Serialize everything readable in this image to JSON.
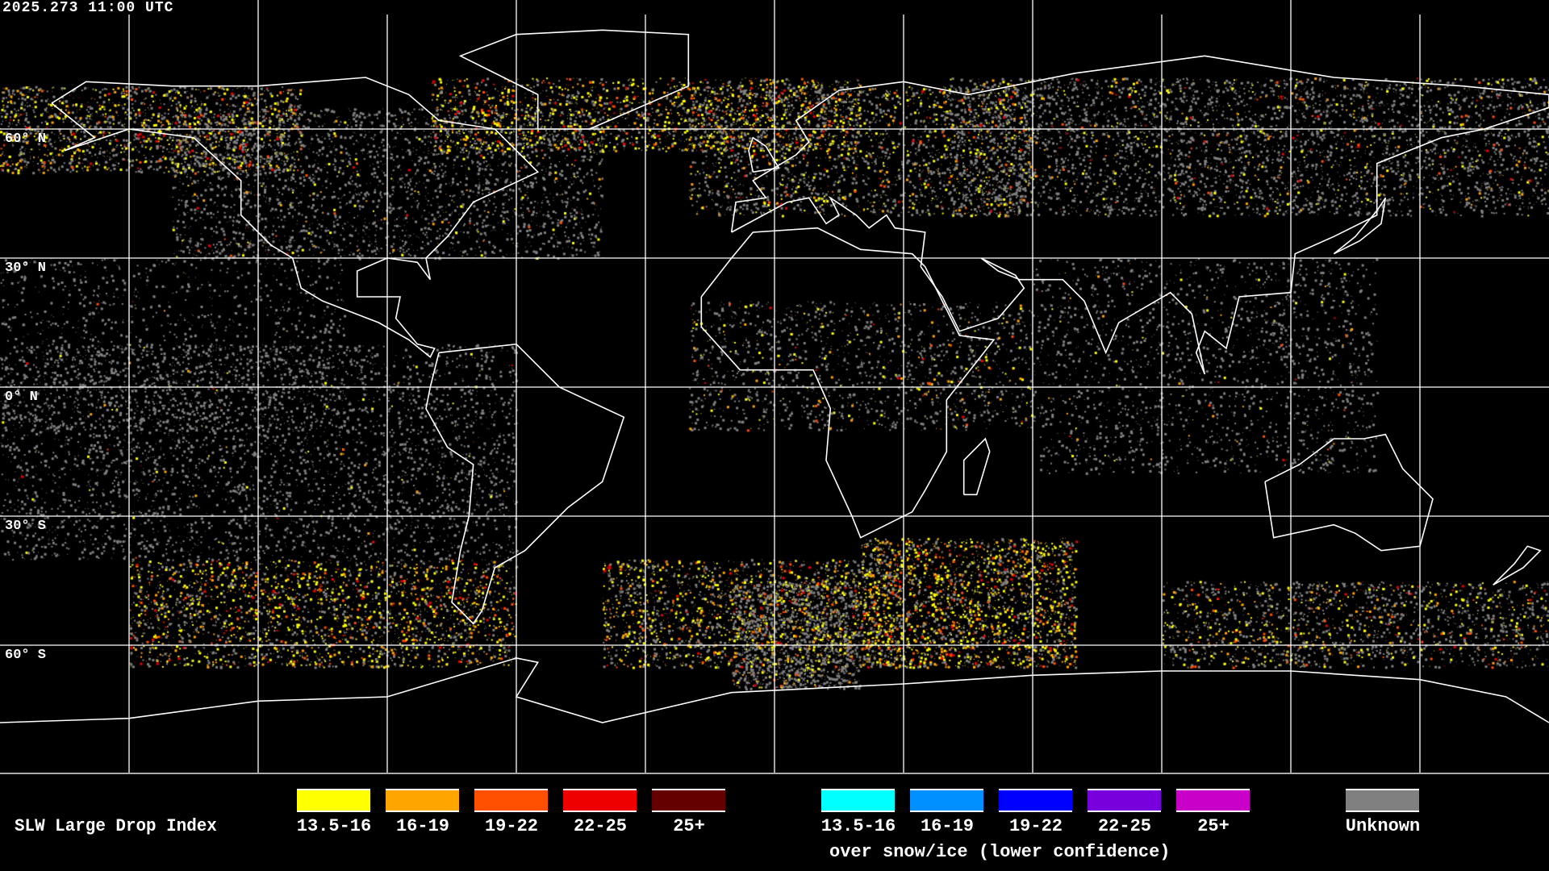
{
  "timestamp": "2025.273 11:00 UTC",
  "lat_labels": [
    "60° N",
    "30° N",
    "0° N",
    "30° S",
    "60° S"
  ],
  "legend": {
    "title": "SLW Large Drop Index",
    "standard": [
      {
        "label": "13.5-16",
        "color": "#ffff00"
      },
      {
        "label": "16-19",
        "color": "#ffa500"
      },
      {
        "label": "19-22",
        "color": "#ff5000"
      },
      {
        "label": "22-25",
        "color": "#ee0000"
      },
      {
        "label": "25+",
        "color": "#640000"
      }
    ],
    "snow_ice": [
      {
        "label": "13.5-16",
        "color": "#00ffff"
      },
      {
        "label": "16-19",
        "color": "#0090ff"
      },
      {
        "label": "19-22",
        "color": "#0000ff"
      },
      {
        "label": "22-25",
        "color": "#7800dc"
      },
      {
        "label": "25+",
        "color": "#c800c8"
      }
    ],
    "snow_ice_note": "over snow/ice (lower confidence)",
    "unknown": {
      "label": "Unknown",
      "color": "#808080"
    }
  }
}
